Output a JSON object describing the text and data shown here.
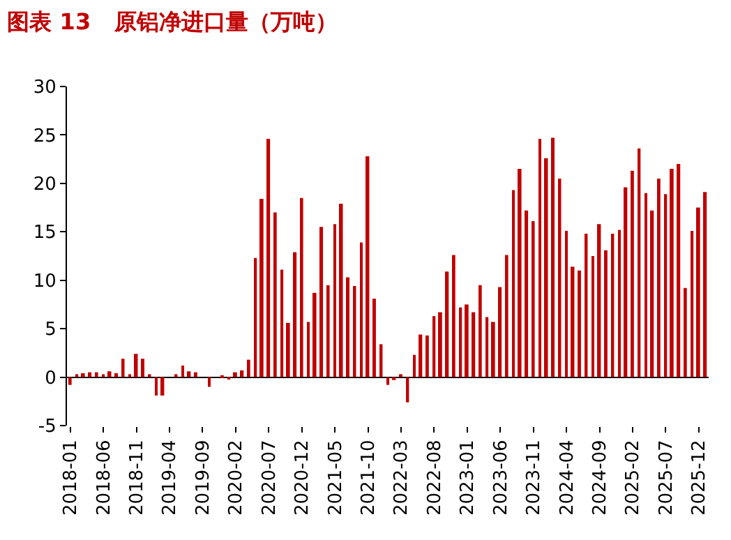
{
  "chart_data": {
    "type": "bar",
    "title": "图表 13   原铝净进口量（万吨）",
    "categories": [
      "2018-01",
      null,
      null,
      null,
      null,
      "2018-06",
      null,
      null,
      null,
      null,
      "2018-11",
      null,
      null,
      null,
      null,
      "2019-04",
      null,
      null,
      null,
      null,
      "2019-09",
      null,
      null,
      null,
      null,
      "2020-02",
      null,
      null,
      null,
      null,
      "2020-07",
      null,
      null,
      null,
      null,
      "2020-12",
      null,
      null,
      null,
      null,
      "2021-05",
      null,
      null,
      null,
      null,
      "2021-10",
      null,
      null,
      null,
      null,
      "2022-03",
      null,
      null,
      null,
      null,
      "2022-08",
      null,
      null,
      null,
      null,
      "2023-01",
      null,
      null,
      null,
      null,
      "2023-06",
      null,
      null,
      null,
      null,
      "2023-11",
      null,
      null,
      null,
      null,
      "2024-04",
      null,
      null,
      null,
      null,
      "2024-09",
      null,
      null,
      null,
      null,
      "2025-02",
      null,
      null,
      null,
      null,
      "2025-07",
      null,
      null,
      null,
      null,
      "2025-12",
      null
    ],
    "values": [
      -0.8,
      0.3,
      0.4,
      0.5,
      0.5,
      0.3,
      0.6,
      0.4,
      1.9,
      0.3,
      2.4,
      1.9,
      0.3,
      -1.9,
      -1.9,
      0,
      0.3,
      1.2,
      0.6,
      0.5,
      0,
      -1.0,
      0,
      0.2,
      -0.2,
      0.5,
      0.7,
      1.8,
      12.3,
      18.4,
      24.6,
      17.0,
      11.1,
      5.6,
      12.9,
      18.5,
      5.7,
      8.7,
      15.5,
      9.5,
      15.8,
      17.9,
      10.3,
      9.4,
      13.9,
      22.8,
      8.1,
      3.4,
      -0.8,
      -0.3,
      0.3,
      -2.6,
      2.3,
      4.4,
      4.3,
      6.3,
      6.7,
      10.9,
      12.6,
      7.2,
      7.5,
      6.7,
      9.5,
      6.2,
      5.7,
      9.3,
      12.6,
      19.3,
      21.5,
      17.2,
      16.1,
      24.6,
      22.6,
      24.7,
      20.5,
      15.1,
      11.4,
      11.0,
      14.8,
      12.5,
      15.8,
      13.1,
      14.8,
      15.2,
      19.6,
      21.3,
      23.6,
      19.0,
      17.2,
      20.5,
      18.9,
      21.5,
      22.0,
      9.2,
      15.1,
      17.5,
      19.1
    ],
    "color": "#c00000",
    "ylim": [
      -5,
      30
    ],
    "yticks": [
      -5,
      0,
      5,
      10,
      15,
      20,
      25,
      30
    ]
  }
}
